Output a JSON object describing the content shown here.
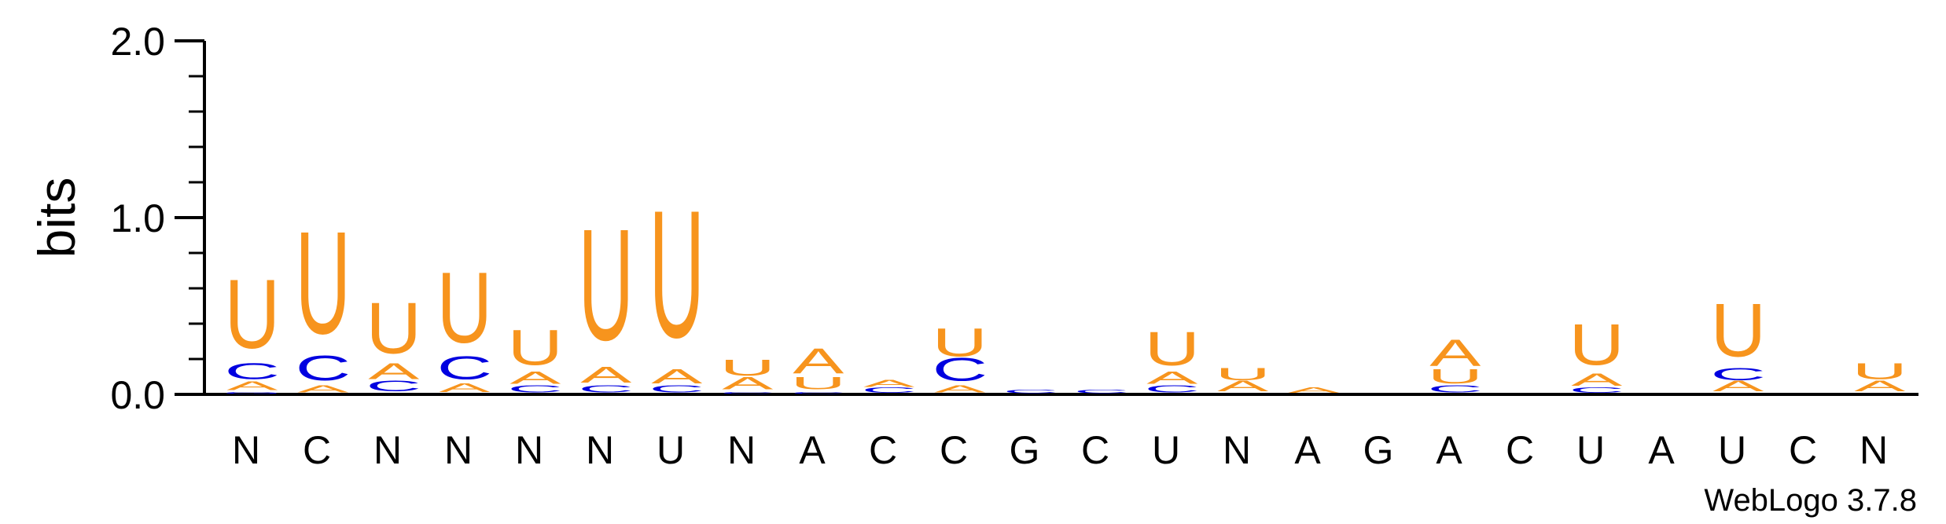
{
  "colors": {
    "U": "#f7941d",
    "A": "#f7941d",
    "C": "#0000e0",
    "G": "#0000e0",
    "axis": "#000000"
  },
  "chart_data": {
    "type": "sequence-logo",
    "ylabel": "bits",
    "ylim": [
      0,
      2.0
    ],
    "yticks": [
      "0.0",
      "1.0",
      "2.0"
    ],
    "credit": "WebLogo 3.7.8",
    "positions": [
      {
        "label": "N",
        "stack": [
          {
            "letter": "G",
            "bits": 0.01
          },
          {
            "letter": "A",
            "bits": 0.05
          },
          {
            "letter": "C",
            "bits": 0.09
          },
          {
            "letter": "U",
            "bits": 0.39
          }
        ]
      },
      {
        "label": "C",
        "stack": [
          {
            "letter": "A",
            "bits": 0.04
          },
          {
            "letter": "C",
            "bits": 0.14
          },
          {
            "letter": "U",
            "bits": 0.58
          }
        ]
      },
      {
        "label": "N",
        "stack": [
          {
            "letter": "C",
            "bits": 0.06
          },
          {
            "letter": "A",
            "bits": 0.09
          },
          {
            "letter": "U",
            "bits": 0.29
          }
        ]
      },
      {
        "label": "N",
        "stack": [
          {
            "letter": "A",
            "bits": 0.05
          },
          {
            "letter": "C",
            "bits": 0.13
          },
          {
            "letter": "U",
            "bits": 0.4
          }
        ]
      },
      {
        "label": "N",
        "stack": [
          {
            "letter": "C",
            "bits": 0.04
          },
          {
            "letter": "A",
            "bits": 0.07
          },
          {
            "letter": "U",
            "bits": 0.2
          }
        ]
      },
      {
        "label": "N",
        "stack": [
          {
            "letter": "C",
            "bits": 0.04
          },
          {
            "letter": "A",
            "bits": 0.09
          },
          {
            "letter": "U",
            "bits": 0.63
          }
        ]
      },
      {
        "label": "U",
        "stack": [
          {
            "letter": "C",
            "bits": 0.04
          },
          {
            "letter": "A",
            "bits": 0.08
          },
          {
            "letter": "U",
            "bits": 0.72
          }
        ]
      },
      {
        "label": "N",
        "stack": [
          {
            "letter": "C",
            "bits": 0.01
          },
          {
            "letter": "A",
            "bits": 0.07
          },
          {
            "letter": "U",
            "bits": 0.09
          }
        ]
      },
      {
        "label": "A",
        "stack": [
          {
            "letter": "C",
            "bits": 0.01
          },
          {
            "letter": "U",
            "bits": 0.07
          },
          {
            "letter": "A",
            "bits": 0.14
          }
        ]
      },
      {
        "label": "C",
        "stack": [
          {
            "letter": "C",
            "bits": 0.03
          },
          {
            "letter": "A",
            "bits": 0.04
          }
        ]
      },
      {
        "label": "C",
        "stack": [
          {
            "letter": "A",
            "bits": 0.04
          },
          {
            "letter": "C",
            "bits": 0.13
          },
          {
            "letter": "U",
            "bits": 0.16
          }
        ]
      },
      {
        "label": "G",
        "stack": [
          {
            "letter": "C",
            "bits": 0.02
          }
        ]
      },
      {
        "label": "C",
        "stack": [
          {
            "letter": "C",
            "bits": 0.02
          }
        ]
      },
      {
        "label": "U",
        "stack": [
          {
            "letter": "C",
            "bits": 0.04
          },
          {
            "letter": "A",
            "bits": 0.07
          },
          {
            "letter": "U",
            "bits": 0.19
          }
        ]
      },
      {
        "label": "N",
        "stack": [
          {
            "letter": "A",
            "bits": 0.06
          },
          {
            "letter": "U",
            "bits": 0.07
          }
        ]
      },
      {
        "label": "A",
        "stack": [
          {
            "letter": "A",
            "bits": 0.03
          }
        ]
      },
      {
        "label": "G",
        "stack": []
      },
      {
        "label": "A",
        "stack": [
          {
            "letter": "C",
            "bits": 0.04
          },
          {
            "letter": "U",
            "bits": 0.08
          },
          {
            "letter": "A",
            "bits": 0.15
          }
        ]
      },
      {
        "label": "C",
        "stack": []
      },
      {
        "label": "U",
        "stack": [
          {
            "letter": "C",
            "bits": 0.03
          },
          {
            "letter": "A",
            "bits": 0.07
          },
          {
            "letter": "U",
            "bits": 0.23
          }
        ]
      },
      {
        "label": "A",
        "stack": []
      },
      {
        "label": "U",
        "stack": [
          {
            "letter": "A",
            "bits": 0.06
          },
          {
            "letter": "C",
            "bits": 0.07
          },
          {
            "letter": "U",
            "bits": 0.3
          }
        ]
      },
      {
        "label": "C",
        "stack": []
      },
      {
        "label": "N",
        "stack": [
          {
            "letter": "A",
            "bits": 0.06
          },
          {
            "letter": "U",
            "bits": 0.09
          }
        ]
      }
    ]
  }
}
